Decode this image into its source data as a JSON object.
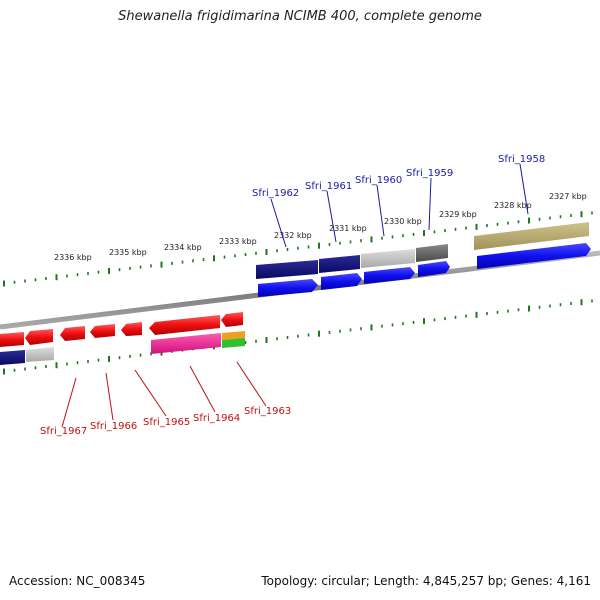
{
  "title": "Shewanella frigidimarina NCIMB 400, complete genome",
  "footer": {
    "accession": "Accession: NC_008345",
    "topology": "Topology: circular; Length: 4,845,257 bp; Genes: 4,161"
  },
  "ruler_labels": [
    "2336 kbp",
    "2335 kbp",
    "2334 kbp",
    "2333 kbp",
    "2332 kbp",
    "2331 kbp",
    "2330 kbp",
    "2329 kbp",
    "2328 kbp",
    "2327 kbp"
  ],
  "forward_genes": [
    "Sfri_1962",
    "Sfri_1961",
    "Sfri_1960",
    "Sfri_1959",
    "Sfri_1958"
  ],
  "reverse_genes": [
    "Sfri_1967",
    "Sfri_1966",
    "Sfri_1965",
    "Sfri_1964",
    "Sfri_1963"
  ],
  "colors": {
    "forward_gene": "#1010ee",
    "reverse_gene": "#ee1010",
    "forward_label": "#1a1aa8",
    "reverse_label": "#c01010",
    "tick": "#1a7a1a",
    "backbone": "#888888"
  }
}
